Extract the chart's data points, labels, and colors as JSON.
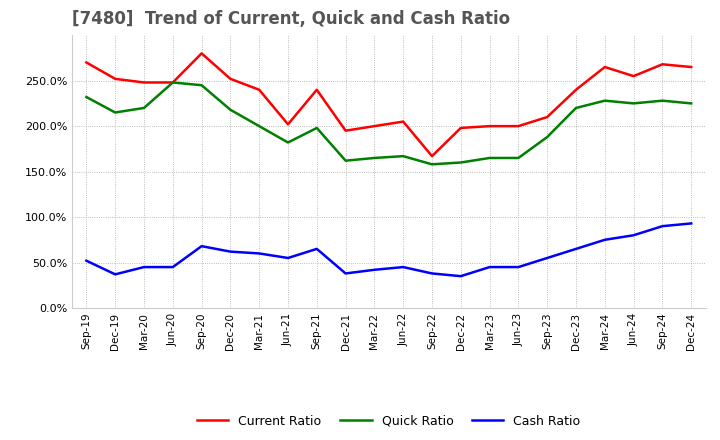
{
  "title": "[7480]  Trend of Current, Quick and Cash Ratio",
  "x_labels": [
    "Sep-19",
    "Dec-19",
    "Mar-20",
    "Jun-20",
    "Sep-20",
    "Dec-20",
    "Mar-21",
    "Jun-21",
    "Sep-21",
    "Dec-21",
    "Mar-22",
    "Jun-22",
    "Sep-22",
    "Dec-22",
    "Mar-23",
    "Jun-23",
    "Sep-23",
    "Dec-23",
    "Mar-24",
    "Jun-24",
    "Sep-24",
    "Dec-24"
  ],
  "current_ratio": [
    270,
    252,
    248,
    248,
    280,
    252,
    240,
    202,
    240,
    195,
    200,
    205,
    167,
    198,
    200,
    200,
    210,
    240,
    265,
    255,
    268,
    265
  ],
  "quick_ratio": [
    232,
    215,
    220,
    248,
    245,
    218,
    200,
    182,
    198,
    162,
    165,
    167,
    158,
    160,
    165,
    165,
    188,
    220,
    228,
    225,
    228,
    225
  ],
  "cash_ratio": [
    52,
    37,
    45,
    45,
    68,
    62,
    60,
    55,
    65,
    38,
    42,
    45,
    38,
    35,
    45,
    45,
    55,
    65,
    75,
    80,
    90,
    93
  ],
  "current_color": "#ff0000",
  "quick_color": "#008000",
  "cash_color": "#0000ff",
  "ylim": [
    0,
    300
  ],
  "yticks": [
    0,
    50,
    100,
    150,
    200,
    250
  ],
  "background_color": "#ffffff",
  "grid_color": "#aaaaaa",
  "title_fontsize": 12
}
